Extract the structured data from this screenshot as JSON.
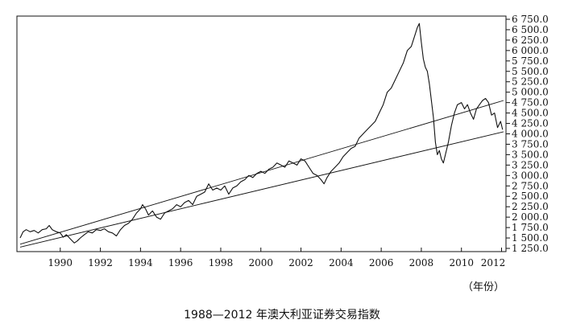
{
  "chart_data": {
    "type": "line",
    "title": "1988—2012 年澳大利亚证券交易指数",
    "xlabel": "（年份）",
    "ylabel": "",
    "xlim": [
      1988.0,
      2012.1
    ],
    "ylim": [
      1250,
      6750
    ],
    "x_ticks": [
      1990,
      1992,
      1994,
      1996,
      1998,
      2000,
      2002,
      2004,
      2006,
      2008,
      2010,
      2012
    ],
    "x_tick_labels": [
      "1990",
      "1992",
      "1994",
      "1996",
      "1998",
      "2000",
      "2002",
      "2004",
      "2006",
      "2008",
      "2010",
      "2012"
    ],
    "y_ticks": [
      1250,
      1500,
      1750,
      2000,
      2250,
      2500,
      2750,
      3000,
      3250,
      3500,
      3750,
      4000,
      4250,
      4500,
      4750,
      5000,
      5250,
      5500,
      5750,
      6000,
      6250,
      6500,
      6750
    ],
    "y_tick_labels": [
      "1 250.0",
      "1 500.0",
      "1 750.0",
      "2 000.0",
      "2 250.0",
      "2 500.0",
      "2 750.0",
      "3 000.0",
      "3 250.0",
      "3 500.0",
      "3 750.0",
      "4 000.0",
      "4 250.0",
      "4 500.0",
      "4 750.0",
      "5 000.0",
      "5 250.0",
      "5 500.0",
      "5 750.0",
      "6 000.0",
      "6 250.0",
      "6 500.0",
      "6 750.0"
    ],
    "grid": false,
    "series": [
      {
        "color": "#111111",
        "x": [
          1988.0,
          1988.15,
          1988.3,
          1988.5,
          1988.7,
          1988.9,
          1989.1,
          1989.3,
          1989.45,
          1989.6,
          1989.8,
          1990.0,
          1990.15,
          1990.3,
          1990.5,
          1990.7,
          1990.85,
          1991.0,
          1991.2,
          1991.4,
          1991.6,
          1991.8,
          1992.0,
          1992.2,
          1992.4,
          1992.6,
          1992.8,
          1993.0,
          1993.2,
          1993.4,
          1993.6,
          1993.8,
          1994.0,
          1994.1,
          1994.25,
          1994.4,
          1994.6,
          1994.8,
          1995.0,
          1995.2,
          1995.4,
          1995.6,
          1995.8,
          1996.0,
          1996.2,
          1996.4,
          1996.6,
          1996.8,
          1997.0,
          1997.2,
          1997.4,
          1997.6,
          1997.8,
          1998.0,
          1998.2,
          1998.4,
          1998.6,
          1998.8,
          1999.0,
          1999.2,
          1999.4,
          1999.6,
          1999.8,
          2000.0,
          2000.2,
          2000.4,
          2000.6,
          2000.8,
          2001.0,
          2001.2,
          2001.4,
          2001.6,
          2001.8,
          2002.0,
          2002.2,
          2002.4,
          2002.6,
          2002.8,
          2003.0,
          2003.15,
          2003.3,
          2003.5,
          2003.7,
          2003.9,
          2004.1,
          2004.3,
          2004.5,
          2004.7,
          2004.9,
          2005.1,
          2005.3,
          2005.5,
          2005.7,
          2005.9,
          2006.1,
          2006.3,
          2006.5,
          2006.7,
          2006.9,
          2007.1,
          2007.3,
          2007.5,
          2007.7,
          2007.8,
          2007.9,
          2008.0,
          2008.1,
          2008.2,
          2008.3,
          2008.4,
          2008.5,
          2008.6,
          2008.7,
          2008.8,
          2008.9,
          2009.0,
          2009.1,
          2009.2,
          2009.35,
          2009.5,
          2009.65,
          2009.8,
          2010.0,
          2010.15,
          2010.3,
          2010.45,
          2010.6,
          2010.75,
          2010.9,
          2011.05,
          2011.2,
          2011.35,
          2011.5,
          2011.65,
          2011.8,
          2011.95,
          2012.05
        ],
        "y": [
          1500,
          1650,
          1700,
          1650,
          1680,
          1620,
          1700,
          1720,
          1800,
          1700,
          1650,
          1620,
          1520,
          1580,
          1480,
          1380,
          1430,
          1500,
          1580,
          1650,
          1620,
          1700,
          1680,
          1720,
          1650,
          1620,
          1550,
          1700,
          1800,
          1850,
          1950,
          2100,
          2200,
          2300,
          2200,
          2050,
          2150,
          2000,
          1950,
          2100,
          2150,
          2200,
          2300,
          2250,
          2350,
          2400,
          2300,
          2500,
          2550,
          2600,
          2800,
          2650,
          2700,
          2650,
          2750,
          2550,
          2700,
          2750,
          2850,
          2900,
          3000,
          2950,
          3050,
          3100,
          3050,
          3150,
          3200,
          3300,
          3250,
          3200,
          3350,
          3300,
          3250,
          3400,
          3350,
          3200,
          3050,
          3000,
          2900,
          2800,
          2950,
          3100,
          3200,
          3300,
          3450,
          3550,
          3650,
          3700,
          3900,
          4000,
          4100,
          4200,
          4300,
          4500,
          4700,
          5000,
          5100,
          5300,
          5500,
          5700,
          6000,
          6100,
          6400,
          6550,
          6650,
          6200,
          5800,
          5600,
          5500,
          5200,
          4800,
          4400,
          3800,
          3500,
          3600,
          3400,
          3300,
          3500,
          3800,
          4200,
          4500,
          4700,
          4750,
          4600,
          4700,
          4500,
          4350,
          4600,
          4700,
          4800,
          4850,
          4750,
          4450,
          4500,
          4150,
          4300,
          4100
        ]
      },
      {
        "color": "#111111",
        "x": [
          1988.0,
          2012.1
        ],
        "y": [
          1350,
          4800
        ]
      },
      {
        "color": "#111111",
        "x": [
          1988.0,
          2012.1
        ],
        "y": [
          1280,
          4050
        ]
      }
    ]
  }
}
